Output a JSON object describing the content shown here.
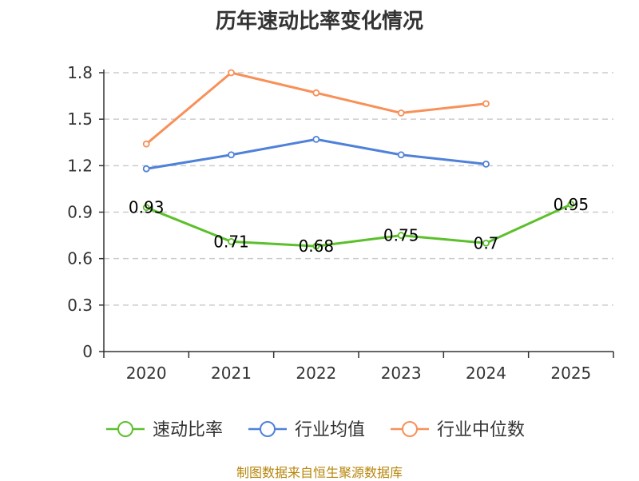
{
  "chart_data": {
    "type": "line",
    "title": "历年速动比率变化情况",
    "categories": [
      "2020",
      "2021",
      "2022",
      "2023",
      "2024",
      "2025"
    ],
    "ylim": [
      0,
      1.8
    ],
    "yticks": [
      "0",
      "0.3",
      "0.6",
      "0.9",
      "1.2",
      "1.5",
      "1.8"
    ],
    "grid": true,
    "legend_position": "bottom",
    "series": [
      {
        "name": "速动比率",
        "color": "#5cc02c",
        "values": [
          0.93,
          0.71,
          0.68,
          0.75,
          0.7,
          0.95
        ],
        "data_labels": [
          "0.93",
          "0.71",
          "0.68",
          "0.75",
          "0.7",
          "0.95"
        ]
      },
      {
        "name": "行业均值",
        "color": "#4f81d9",
        "values": [
          1.18,
          1.27,
          1.37,
          1.27,
          1.21,
          null
        ]
      },
      {
        "name": "行业中位数",
        "color": "#f89059",
        "values": [
          1.34,
          1.8,
          1.67,
          1.54,
          1.6,
          null
        ]
      }
    ]
  },
  "source": "制图数据来自恒生聚源数据库"
}
